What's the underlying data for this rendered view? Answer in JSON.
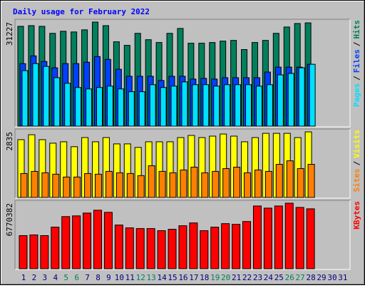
{
  "chart_data": [
    {
      "type": "bar",
      "title": "Daily usage for February 2022",
      "categories": [
        "1",
        "2",
        "3",
        "4",
        "5",
        "6",
        "7",
        "8",
        "9",
        "10",
        "11",
        "12",
        "13",
        "14",
        "15",
        "16",
        "17",
        "18",
        "19",
        "20",
        "21",
        "22",
        "23",
        "24",
        "25",
        "26",
        "27",
        "28",
        "29",
        "30",
        "31"
      ],
      "category_colors": [
        "#000080",
        "#000080",
        "#000080",
        "#000080",
        "#00805c",
        "#00805c",
        "#000080",
        "#000080",
        "#000080",
        "#000080",
        "#000080",
        "#00805c",
        "#00805c",
        "#000080",
        "#000080",
        "#000080",
        "#000080",
        "#000080",
        "#00805c",
        "#00805c",
        "#000080",
        "#000080",
        "#000080",
        "#000080",
        "#000080",
        "#00805c",
        "#00805c",
        "#000080",
        "#000080",
        "#000080",
        "#000080"
      ],
      "ylim": [
        0,
        31227
      ],
      "yticks": [
        31227
      ],
      "legend_separator": "/",
      "series": [
        {
          "name": "Hits",
          "color": "#00805c",
          "values": [
            29950,
            30160,
            29950,
            27830,
            28460,
            28250,
            28890,
            31227,
            30160,
            25280,
            24210,
            27830,
            25910,
            25060,
            27830,
            29310,
            24850,
            24850,
            25060,
            25490,
            25700,
            22940,
            25060,
            25700,
            27830,
            29740,
            30800,
            31000,
            null,
            null,
            null
          ]
        },
        {
          "name": "Files",
          "color": "#0040ff",
          "values": [
            18690,
            21030,
            19330,
            17420,
            18690,
            18690,
            19120,
            20820,
            19970,
            16990,
            14870,
            14870,
            14870,
            13590,
            14870,
            14870,
            14020,
            14230,
            14020,
            14440,
            14440,
            14440,
            14440,
            16140,
            17630,
            17630,
            17630,
            18480,
            null,
            null,
            null
          ]
        },
        {
          "name": "Pages",
          "color": "#00e0ff",
          "values": [
            16570,
            18690,
            17840,
            14440,
            12740,
            11470,
            11040,
            11470,
            11890,
            11040,
            10200,
            10200,
            12320,
            11470,
            11890,
            13170,
            12320,
            12320,
            11890,
            12320,
            12320,
            12320,
            11890,
            12320,
            15290,
            15720,
            17420,
            18480,
            null,
            null,
            null
          ]
        }
      ]
    },
    {
      "type": "bar",
      "ylim": [
        0,
        2835
      ],
      "yticks": [
        2835
      ],
      "legend_separator": "/",
      "series": [
        {
          "name": "Visits",
          "color": "#ffff00",
          "values": [
            2495,
            2710,
            2495,
            2341,
            2402,
            2187,
            2587,
            2402,
            2587,
            2310,
            2310,
            2156,
            2402,
            2402,
            2402,
            2587,
            2680,
            2587,
            2649,
            2741,
            2649,
            2402,
            2587,
            2772,
            2772,
            2772,
            2587,
            2835,
            null,
            null,
            null
          ]
        },
        {
          "name": "Sites",
          "color": "#ff8000",
          "values": [
            1016,
            1109,
            1047,
            986,
            862,
            862,
            1016,
            986,
            1109,
            1047,
            1016,
            924,
            1355,
            1109,
            1047,
            1170,
            1294,
            1047,
            1109,
            1232,
            1294,
            1047,
            1170,
            1109,
            1417,
            1571,
            1232,
            1417,
            null,
            null,
            null
          ]
        }
      ]
    },
    {
      "type": "bar",
      "ylim": [
        0,
        6770382
      ],
      "yticks": [
        6770382
      ],
      "series": [
        {
          "name": "KBytes",
          "color": "#ff0000",
          "values": [
            3385190,
            3458770,
            3385190,
            4268280,
            5372150,
            5445730,
            5740100,
            6034470,
            5813690,
            4489050,
            4194690,
            4121100,
            4121100,
            3900320,
            4047510,
            4415460,
            4709820,
            3900320,
            4268280,
            4636230,
            4562640,
            4857010,
            6476010,
            6255240,
            6476010,
            6770382,
            6328830,
            6181650,
            null,
            null,
            null
          ]
        }
      ]
    }
  ]
}
